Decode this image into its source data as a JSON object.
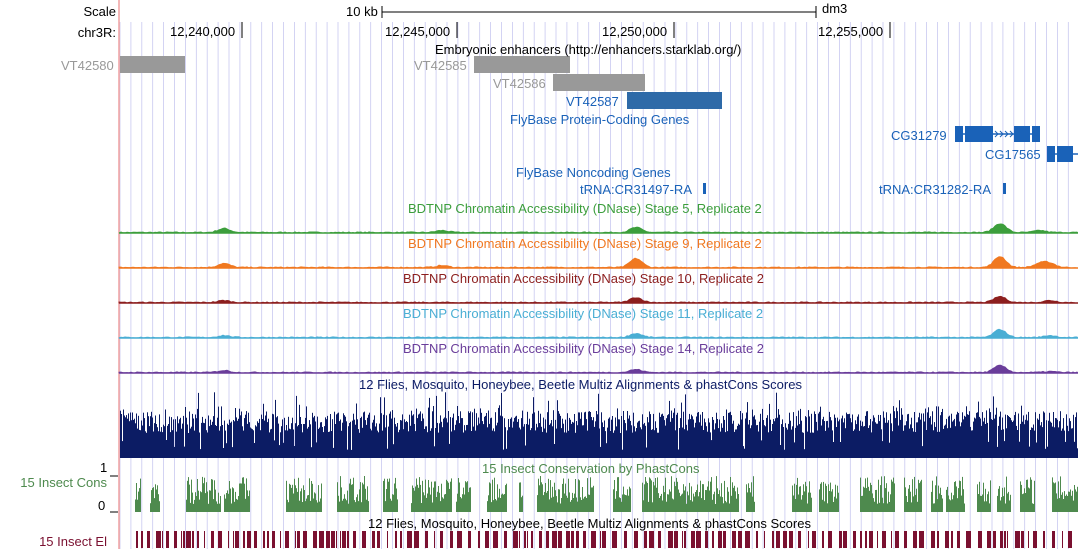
{
  "ruler": {
    "scale_label": "Scale",
    "scalebar_label": "10 kb",
    "assembly": "dm3",
    "chrom_label": "chr3R:",
    "positions": [
      "12,240,000",
      "12,245,000",
      "12,250,000",
      "12,255,000"
    ]
  },
  "enhancers": {
    "title": "Embryonic enhancers (http://enhancers.starklab.org/)",
    "items": [
      "VT42580",
      "VT42585",
      "VT42586",
      "VT42587"
    ]
  },
  "flybase_coding": {
    "title": "FlyBase Protein-Coding Genes",
    "genes": [
      "CG31279",
      "CG17565"
    ]
  },
  "flybase_noncoding": {
    "title": "FlyBase Noncoding Genes",
    "genes": [
      "tRNA:CR31497-RA",
      "tRNA:CR31282-RA"
    ]
  },
  "dnase_tracks": [
    {
      "title": "BDTNP Chromatin Accessibility (DNase) Stage 5, Replicate 2",
      "color": "#3c9e3c"
    },
    {
      "title": "BDTNP Chromatin Accessibility (DNase) Stage 9, Replicate 2",
      "color": "#f07820"
    },
    {
      "title": "BDTNP Chromatin Accessibility (DNase) Stage 10, Replicate 2",
      "color": "#8c1e1e"
    },
    {
      "title": "BDTNP Chromatin Accessibility (DNase) Stage 11, Replicate 2",
      "color": "#4aaed4"
    },
    {
      "title": "BDTNP Chromatin Accessibility (DNase) Stage 14, Replicate 2",
      "color": "#6a3d9a"
    }
  ],
  "multiz": {
    "title": "12 Flies, Mosquito, Honeybee, Beetle Multiz Alignments & phastCons Scores",
    "color": "#0c1c64"
  },
  "insect_cons": {
    "title": "15 Insect Conservation by PhastCons",
    "label": "15 Insect Cons",
    "axis_max": "1",
    "axis_min": "0",
    "color": "#4e8a4e"
  },
  "insect_el": {
    "title": "12 Flies, Mosquito, Honeybee, Beetle Multiz Alignments & phastCons Scores",
    "label": "15 Insect El",
    "color": "#7a1030"
  },
  "colors": {
    "enhancer_gray": "#999999",
    "enhancer_highlight": "#2e6aa8",
    "gene_blue": "#1a62b8",
    "grid": "#c8c8f0",
    "left_edge": "#f0a0a0"
  }
}
